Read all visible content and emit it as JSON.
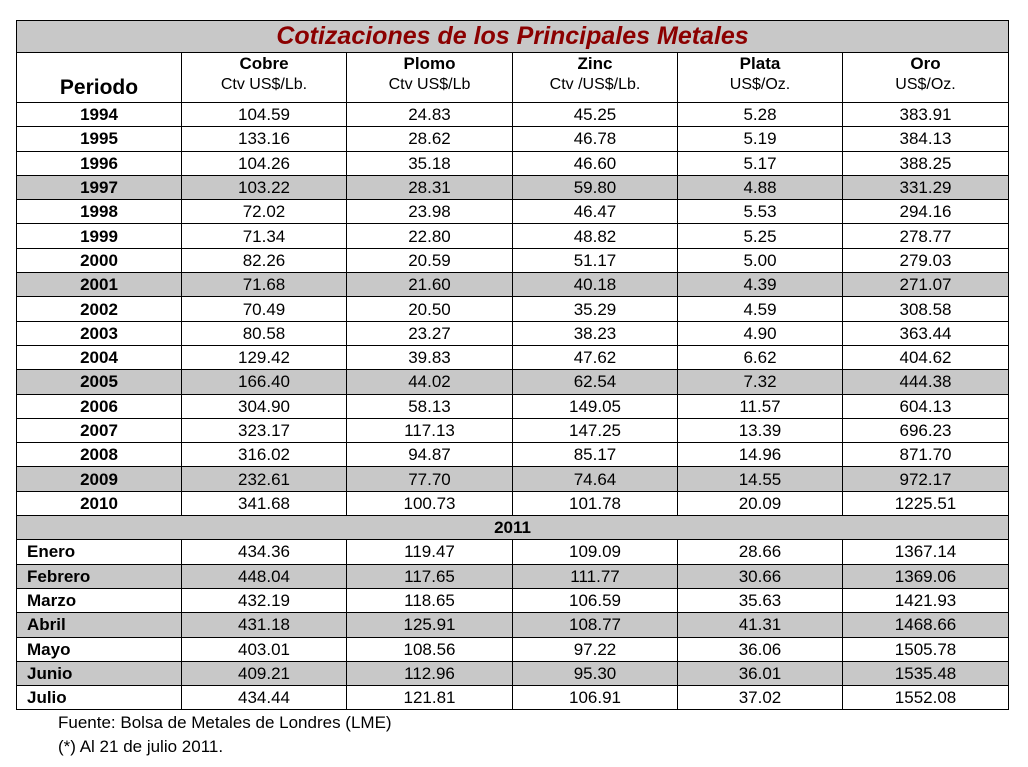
{
  "title": "Cotizaciones de los Principales Metales",
  "columns": [
    {
      "name": "Periodo",
      "unit": ""
    },
    {
      "name": "Cobre",
      "unit": "Ctv US$/Lb."
    },
    {
      "name": "Plomo",
      "unit": "Ctv US$/Lb"
    },
    {
      "name": "Zinc",
      "unit": "Ctv /US$/Lb."
    },
    {
      "name": "Plata",
      "unit": "US$/Oz."
    },
    {
      "name": "Oro",
      "unit": "US$/Oz."
    }
  ],
  "annual_rows": [
    [
      "1994",
      "104.59",
      "24.83",
      "45.25",
      "5.28",
      "383.91"
    ],
    [
      "1995",
      "133.16",
      "28.62",
      "46.78",
      "5.19",
      "384.13"
    ],
    [
      "1996",
      "104.26",
      "35.18",
      "46.60",
      "5.17",
      "388.25"
    ],
    [
      "1997",
      "103.22",
      "28.31",
      "59.80",
      "4.88",
      "331.29"
    ],
    [
      "1998",
      "72.02",
      "23.98",
      "46.47",
      "5.53",
      "294.16"
    ],
    [
      "1999",
      "71.34",
      "22.80",
      "48.82",
      "5.25",
      "278.77"
    ],
    [
      "2000",
      "82.26",
      "20.59",
      "51.17",
      "5.00",
      "279.03"
    ],
    [
      "2001",
      "71.68",
      "21.60",
      "40.18",
      "4.39",
      "271.07"
    ],
    [
      "2002",
      "70.49",
      "20.50",
      "35.29",
      "4.59",
      "308.58"
    ],
    [
      "2003",
      "80.58",
      "23.27",
      "38.23",
      "4.90",
      "363.44"
    ],
    [
      "2004",
      "129.42",
      "39.83",
      "47.62",
      "6.62",
      "404.62"
    ],
    [
      "2005",
      "166.40",
      "44.02",
      "62.54",
      "7.32",
      "444.38"
    ],
    [
      "2006",
      "304.90",
      "58.13",
      "149.05",
      "11.57",
      "604.13"
    ],
    [
      "2007",
      "323.17",
      "117.13",
      "147.25",
      "13.39",
      "696.23"
    ],
    [
      "2008",
      "316.02",
      "94.87",
      "85.17",
      "14.96",
      "871.70"
    ],
    [
      "2009",
      "232.61",
      "77.70",
      "74.64",
      "14.55",
      "972.17"
    ],
    [
      "2010",
      "341.68",
      "100.73",
      "101.78",
      "20.09",
      "1225.51"
    ]
  ],
  "section_label": "2011",
  "monthly_rows": [
    [
      "Enero",
      "434.36",
      "119.47",
      "109.09",
      "28.66",
      "1367.14"
    ],
    [
      "Febrero",
      "448.04",
      "117.65",
      "111.77",
      "30.66",
      "1369.06"
    ],
    [
      "Marzo",
      "432.19",
      "118.65",
      "106.59",
      "35.63",
      "1421.93"
    ],
    [
      "Abril",
      "431.18",
      "125.91",
      "108.77",
      "41.31",
      "1468.66"
    ],
    [
      "Mayo",
      "403.01",
      "108.56",
      "97.22",
      "36.06",
      "1505.78"
    ],
    [
      "Junio",
      "409.21",
      "112.96",
      "95.30",
      "36.01",
      "1535.48"
    ],
    [
      "Julio",
      "434.44",
      "121.81",
      "106.91",
      "37.02",
      "1552.08"
    ]
  ],
  "notes": [
    "Fuente: Bolsa de Metales de Londres (LME)",
    "(*) Al 21 de julio 2011."
  ],
  "colors": {
    "title": "#8b0000",
    "shade": "#c8c8c8"
  }
}
